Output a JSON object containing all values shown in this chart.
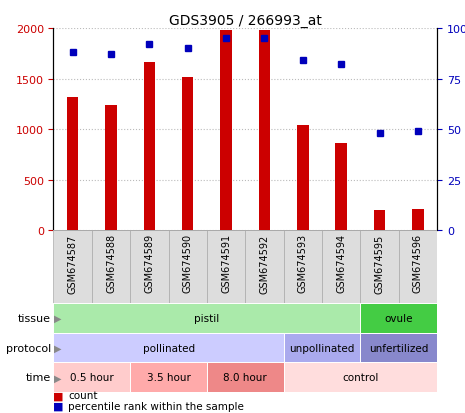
{
  "title": "GDS3905 / 266993_at",
  "samples": [
    "GSM674587",
    "GSM674588",
    "GSM674589",
    "GSM674590",
    "GSM674591",
    "GSM674592",
    "GSM674593",
    "GSM674594",
    "GSM674595",
    "GSM674596"
  ],
  "counts": [
    1320,
    1240,
    1660,
    1520,
    1980,
    1980,
    1040,
    860,
    200,
    210
  ],
  "percentiles": [
    88,
    87,
    92,
    90,
    95,
    95,
    84,
    82,
    48,
    49
  ],
  "ylim_left": [
    0,
    2000
  ],
  "ylim_right": [
    0,
    100
  ],
  "yticks_left": [
    0,
    500,
    1000,
    1500,
    2000
  ],
  "yticks_right": [
    0,
    25,
    50,
    75,
    100
  ],
  "bar_color": "#cc0000",
  "dot_color": "#0000bb",
  "tissue_groups": [
    {
      "label": "pistil",
      "start": 0,
      "end": 8,
      "color": "#aaeaaa"
    },
    {
      "label": "ovule",
      "start": 8,
      "end": 10,
      "color": "#44cc44"
    }
  ],
  "protocol_groups": [
    {
      "label": "pollinated",
      "start": 0,
      "end": 6,
      "color": "#ccccff"
    },
    {
      "label": "unpollinated",
      "start": 6,
      "end": 8,
      "color": "#aaaaee"
    },
    {
      "label": "unfertilized",
      "start": 8,
      "end": 10,
      "color": "#8888cc"
    }
  ],
  "time_groups": [
    {
      "label": "0.5 hour",
      "start": 0,
      "end": 2,
      "color": "#ffcccc"
    },
    {
      "label": "3.5 hour",
      "start": 2,
      "end": 4,
      "color": "#ffaaaa"
    },
    {
      "label": "8.0 hour",
      "start": 4,
      "end": 6,
      "color": "#ee8888"
    },
    {
      "label": "control",
      "start": 6,
      "end": 10,
      "color": "#ffdddd"
    }
  ],
  "row_labels": [
    "tissue",
    "protocol",
    "time"
  ],
  "bg_color": "#ffffff",
  "grid_color": "#bbbbbb",
  "tick_color_left": "#cc0000",
  "tick_color_right": "#0000bb",
  "col_bg": "#dddddd",
  "col_border": "#aaaaaa",
  "bar_width": 0.3
}
